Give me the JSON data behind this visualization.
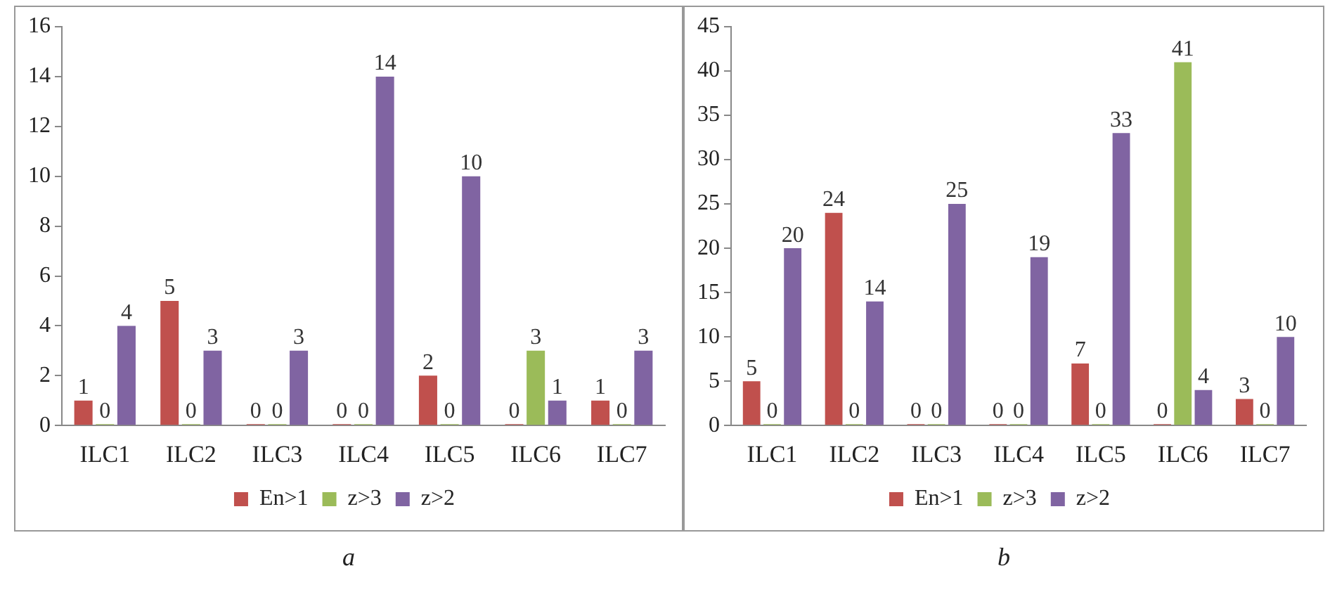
{
  "chart_data": [
    {
      "type": "bar",
      "categories": [
        "ILC1",
        "ILC2",
        "ILC3",
        "ILC4",
        "ILC5",
        "ILC6",
        "ILC7"
      ],
      "series": [
        {
          "name": "En>1",
          "color": "#c0504d",
          "values": [
            1,
            5,
            0,
            0,
            2,
            0,
            1
          ]
        },
        {
          "name": "z>3",
          "color": "#9bbb59",
          "values": [
            0,
            0,
            0,
            0,
            0,
            3,
            0
          ]
        },
        {
          "name": "z>2",
          "color": "#8064a2",
          "values": [
            4,
            3,
            3,
            14,
            10,
            1,
            3
          ]
        }
      ],
      "ylim": [
        0,
        16
      ],
      "yticks": [
        0,
        2,
        4,
        6,
        8,
        10,
        12,
        14,
        16
      ],
      "grid": false,
      "legend": "bottom",
      "data_labels": true,
      "annotations": [
        "a"
      ]
    },
    {
      "type": "bar",
      "categories": [
        "ILC1",
        "ILC2",
        "ILC3",
        "ILC4",
        "ILC5",
        "ILC6",
        "ILC7"
      ],
      "series": [
        {
          "name": "En>1",
          "color": "#c0504d",
          "values": [
            5,
            24,
            0,
            0,
            7,
            0,
            3
          ]
        },
        {
          "name": "z>3",
          "color": "#9bbb59",
          "values": [
            0,
            0,
            0,
            0,
            0,
            41,
            0
          ]
        },
        {
          "name": "z>2",
          "color": "#8064a2",
          "values": [
            20,
            14,
            25,
            19,
            33,
            4,
            10
          ]
        }
      ],
      "ylim": [
        0,
        45
      ],
      "yticks": [
        0,
        5,
        10,
        15,
        20,
        25,
        30,
        35,
        40,
        45
      ],
      "grid": false,
      "legend": "bottom",
      "data_labels": true,
      "annotations": [
        "b"
      ]
    }
  ]
}
